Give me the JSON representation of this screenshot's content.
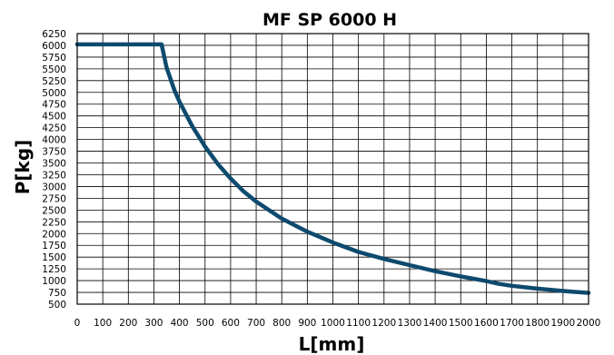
{
  "chart_data": {
    "type": "line",
    "title": "MF SP 6000 H",
    "xlabel": "L[mm]",
    "ylabel": "P[kg]",
    "xlim": [
      0,
      2000
    ],
    "ylim": [
      500,
      6250
    ],
    "x_ticks": [
      0,
      100,
      200,
      300,
      400,
      500,
      600,
      700,
      800,
      900,
      1000,
      1100,
      1200,
      1300,
      1400,
      1500,
      1600,
      1700,
      1800,
      1900,
      2000
    ],
    "y_ticks": [
      500,
      750,
      1000,
      1250,
      1500,
      1750,
      2000,
      2250,
      2500,
      2750,
      3000,
      3250,
      3500,
      3750,
      4000,
      4250,
      4500,
      4750,
      5000,
      5250,
      5500,
      5750,
      6000,
      6250
    ],
    "grid": true,
    "legend": "none",
    "series": [
      {
        "color": "#0d4a6e",
        "x": [
          0,
          330,
          350,
          380,
          400,
          450,
          500,
          550,
          600,
          650,
          700,
          800,
          900,
          1000,
          1100,
          1200,
          1300,
          1400,
          1500,
          1600,
          1650,
          1700,
          1800,
          1900,
          2000
        ],
        "y": [
          6020,
          6020,
          5520,
          5050,
          4800,
          4280,
          3850,
          3480,
          3170,
          2900,
          2680,
          2320,
          2040,
          1810,
          1610,
          1460,
          1330,
          1200,
          1090,
          990,
          930,
          890,
          830,
          780,
          740
        ]
      }
    ]
  }
}
